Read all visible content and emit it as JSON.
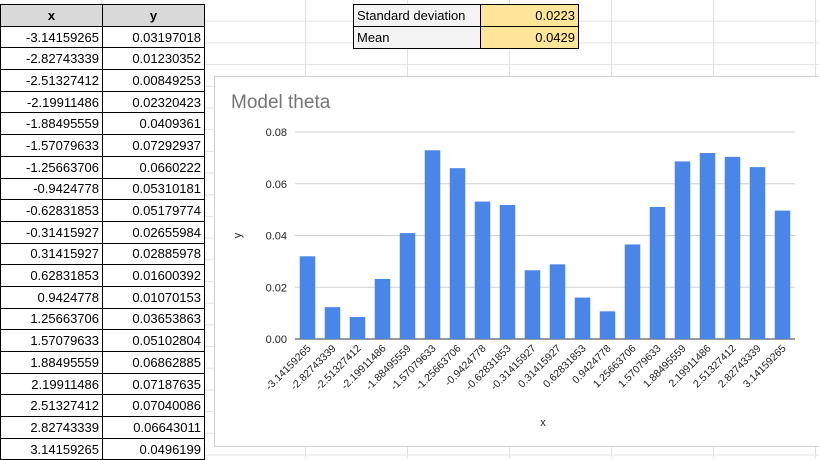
{
  "sheet": {
    "headers": [
      "x",
      "y"
    ],
    "rows": [
      [
        "-3.14159265",
        "0.03197018"
      ],
      [
        "-2.82743339",
        "0.01230352"
      ],
      [
        "-2.51327412",
        "0.00849253"
      ],
      [
        "-2.19911486",
        "0.02320423"
      ],
      [
        "-1.88495559",
        "0.0409361"
      ],
      [
        "-1.57079633",
        "0.07292937"
      ],
      [
        "-1.25663706",
        "0.0660222"
      ],
      [
        "-0.9424778",
        "0.05310181"
      ],
      [
        "-0.62831853",
        "0.05179774"
      ],
      [
        "-0.31415927",
        "0.02655984"
      ],
      [
        "0.31415927",
        "0.02885978"
      ],
      [
        "0.62831853",
        "0.01600392"
      ],
      [
        "0.9424778",
        "0.01070153"
      ],
      [
        "1.25663706",
        "0.03653863"
      ],
      [
        "1.57079633",
        "0.05102804"
      ],
      [
        "1.88495559",
        "0.06862885"
      ],
      [
        "2.19911486",
        "0.07187635"
      ],
      [
        "2.51327412",
        "0.07040086"
      ],
      [
        "2.82743339",
        "0.06643011"
      ],
      [
        "3.14159265",
        "0.0496199"
      ]
    ]
  },
  "stats": {
    "std_label": "Standard deviation",
    "std_value": "0.0223",
    "mean_label": "Mean",
    "mean_value": "0.0429"
  },
  "colors": {
    "bar": "#4a86e8",
    "header_bg": "#d9d9d9",
    "stat_value_bg": "#ffe599"
  },
  "chart_data": {
    "type": "bar",
    "title": "Model theta",
    "xlabel": "x",
    "ylabel": "y",
    "ylim": [
      0,
      0.08
    ],
    "yticks": [
      "0.00",
      "0.02",
      "0.04",
      "0.06",
      "0.08"
    ],
    "grid": true,
    "categories": [
      "-3.14159265",
      "-2.82743339",
      "-2.51327412",
      "-2.19911486",
      "-1.88495559",
      "-1.57079633",
      "-1.25663706",
      "-0.9424778",
      "-0.62831853",
      "-0.31415927",
      "0.31415927",
      "0.62831853",
      "0.9424778",
      "1.25663706",
      "1.57079633",
      "1.88495559",
      "2.19911486",
      "2.51327412",
      "2.82743339",
      "3.14159265"
    ],
    "values": [
      0.03197018,
      0.01230352,
      0.00849253,
      0.02320423,
      0.0409361,
      0.07292937,
      0.0660222,
      0.05310181,
      0.05179774,
      0.02655984,
      0.02885978,
      0.01600392,
      0.01070153,
      0.03653863,
      0.05102804,
      0.06862885,
      0.07187635,
      0.07040086,
      0.06643011,
      0.0496199
    ]
  }
}
